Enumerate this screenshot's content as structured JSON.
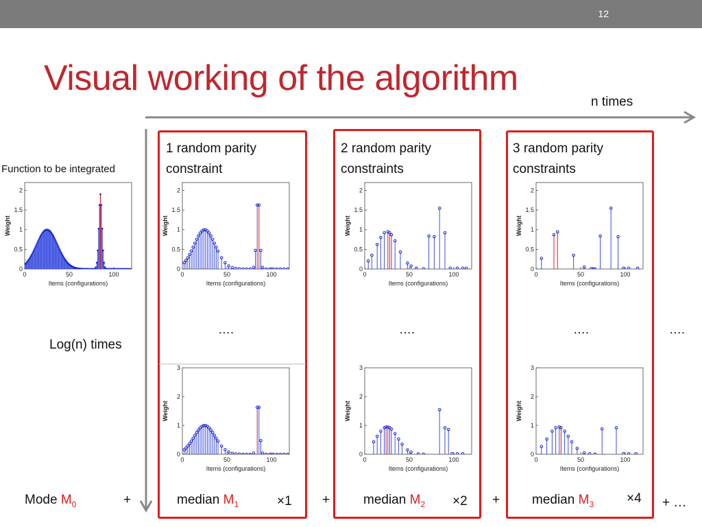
{
  "slide_number": "12",
  "title": "Visual working of the algorithm",
  "n_times": "n times",
  "log_times": "Log(n) times",
  "function_label": "Function to be integrated",
  "panels": [
    {
      "line1": "1 random parity",
      "line2": "constraint"
    },
    {
      "line1": "2 random parity",
      "line2": "constraints"
    },
    {
      "line1": "3 random parity",
      "line2": "constraints"
    }
  ],
  "ellipsis": "….",
  "bottom": {
    "mode": "Mode ",
    "m0": "M",
    "m0_sub": "0",
    "plus": "+",
    "median": "median ",
    "m": "M",
    "m1_sub": "1",
    "m2_sub": "2",
    "m3_sub": "3",
    "x1": "×1",
    "x2": "×2",
    "x4": "×4",
    "end": "+ …"
  },
  "axes": {
    "ylabel": "Weight",
    "xlabel": "Items (configurations)"
  },
  "chart_data": [
    {
      "type": "stem",
      "name": "original",
      "xlim": [
        0,
        120
      ],
      "ylim": [
        0,
        2.2
      ],
      "yticks": [
        0,
        0.5,
        1,
        1.5,
        2
      ],
      "xticks": [
        0,
        50,
        100
      ]
    },
    {
      "type": "stem",
      "name": "p1_top",
      "xlim": [
        0,
        120
      ],
      "ylim": [
        0,
        2.2
      ],
      "yticks": [
        0,
        0.5,
        1,
        1.5,
        2
      ],
      "xticks": [
        0,
        50,
        100
      ]
    },
    {
      "type": "stem",
      "name": "p2_top",
      "xlim": [
        0,
        120
      ],
      "ylim": [
        0,
        2.2
      ],
      "yticks": [
        0,
        0.5,
        1,
        1.5,
        2
      ],
      "xticks": [
        0,
        50,
        100
      ]
    },
    {
      "type": "stem",
      "name": "p3_top",
      "xlim": [
        0,
        120
      ],
      "ylim": [
        0,
        2.2
      ],
      "yticks": [
        0,
        0.5,
        1,
        1.5,
        2
      ],
      "xticks": [
        0,
        50,
        100
      ]
    },
    {
      "type": "stem",
      "name": "p1_bottom",
      "xlim": [
        0,
        120
      ],
      "ylim": [
        0,
        3
      ],
      "yticks": [
        0,
        1,
        2,
        3
      ],
      "xticks": [
        0,
        50,
        100
      ]
    },
    {
      "type": "stem",
      "name": "p2_bottom",
      "xlim": [
        0,
        120
      ],
      "ylim": [
        0,
        3
      ],
      "yticks": [
        0,
        1,
        2,
        3
      ],
      "xticks": [
        0,
        50,
        100
      ]
    },
    {
      "type": "stem",
      "name": "p3_bottom",
      "xlim": [
        0,
        120
      ],
      "ylim": [
        0,
        3
      ],
      "yticks": [
        0,
        1,
        2,
        3
      ],
      "xticks": [
        0,
        50,
        100
      ]
    }
  ]
}
